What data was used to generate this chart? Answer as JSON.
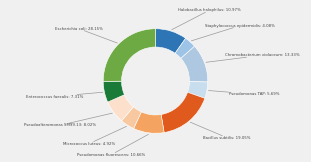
{
  "segments": [
    {
      "label": "Halobacillus halophilus",
      "value": 10.97,
      "color": "#2e75b6"
    },
    {
      "label": "Staphylococcus epidermidis",
      "value": 4.08,
      "color": "#9dc3e6"
    },
    {
      "label": "Chromobacterium violaceum",
      "value": 13.33,
      "color": "#adc8e0"
    },
    {
      "label": "Pseudomonas TAP",
      "value": 5.69,
      "color": "#c8dded"
    },
    {
      "label": "Bacillus subtilis",
      "value": 19.05,
      "color": "#e05a1e"
    },
    {
      "label": "Pseudomonas fluorescens",
      "value": 10.66,
      "color": "#f4a460"
    },
    {
      "label": "Micrococcus luteus",
      "value": 4.92,
      "color": "#f8c8a0"
    },
    {
      "label": "Pseudoalteromonas SM99.13",
      "value": 8.02,
      "color": "#fce0cc"
    },
    {
      "label": "Enterococcus faecalis",
      "value": 7.31,
      "color": "#1a7a38"
    },
    {
      "label": "Escherichia coli",
      "value": 28.15,
      "color": "#6daa44"
    }
  ],
  "label_fontsize": 2.8,
  "figure_bg": "#f0f0f0",
  "donut_width": 0.35,
  "r_out": 1.03,
  "r_label": 1.42,
  "xlim": 2.2,
  "ylim": 1.55
}
